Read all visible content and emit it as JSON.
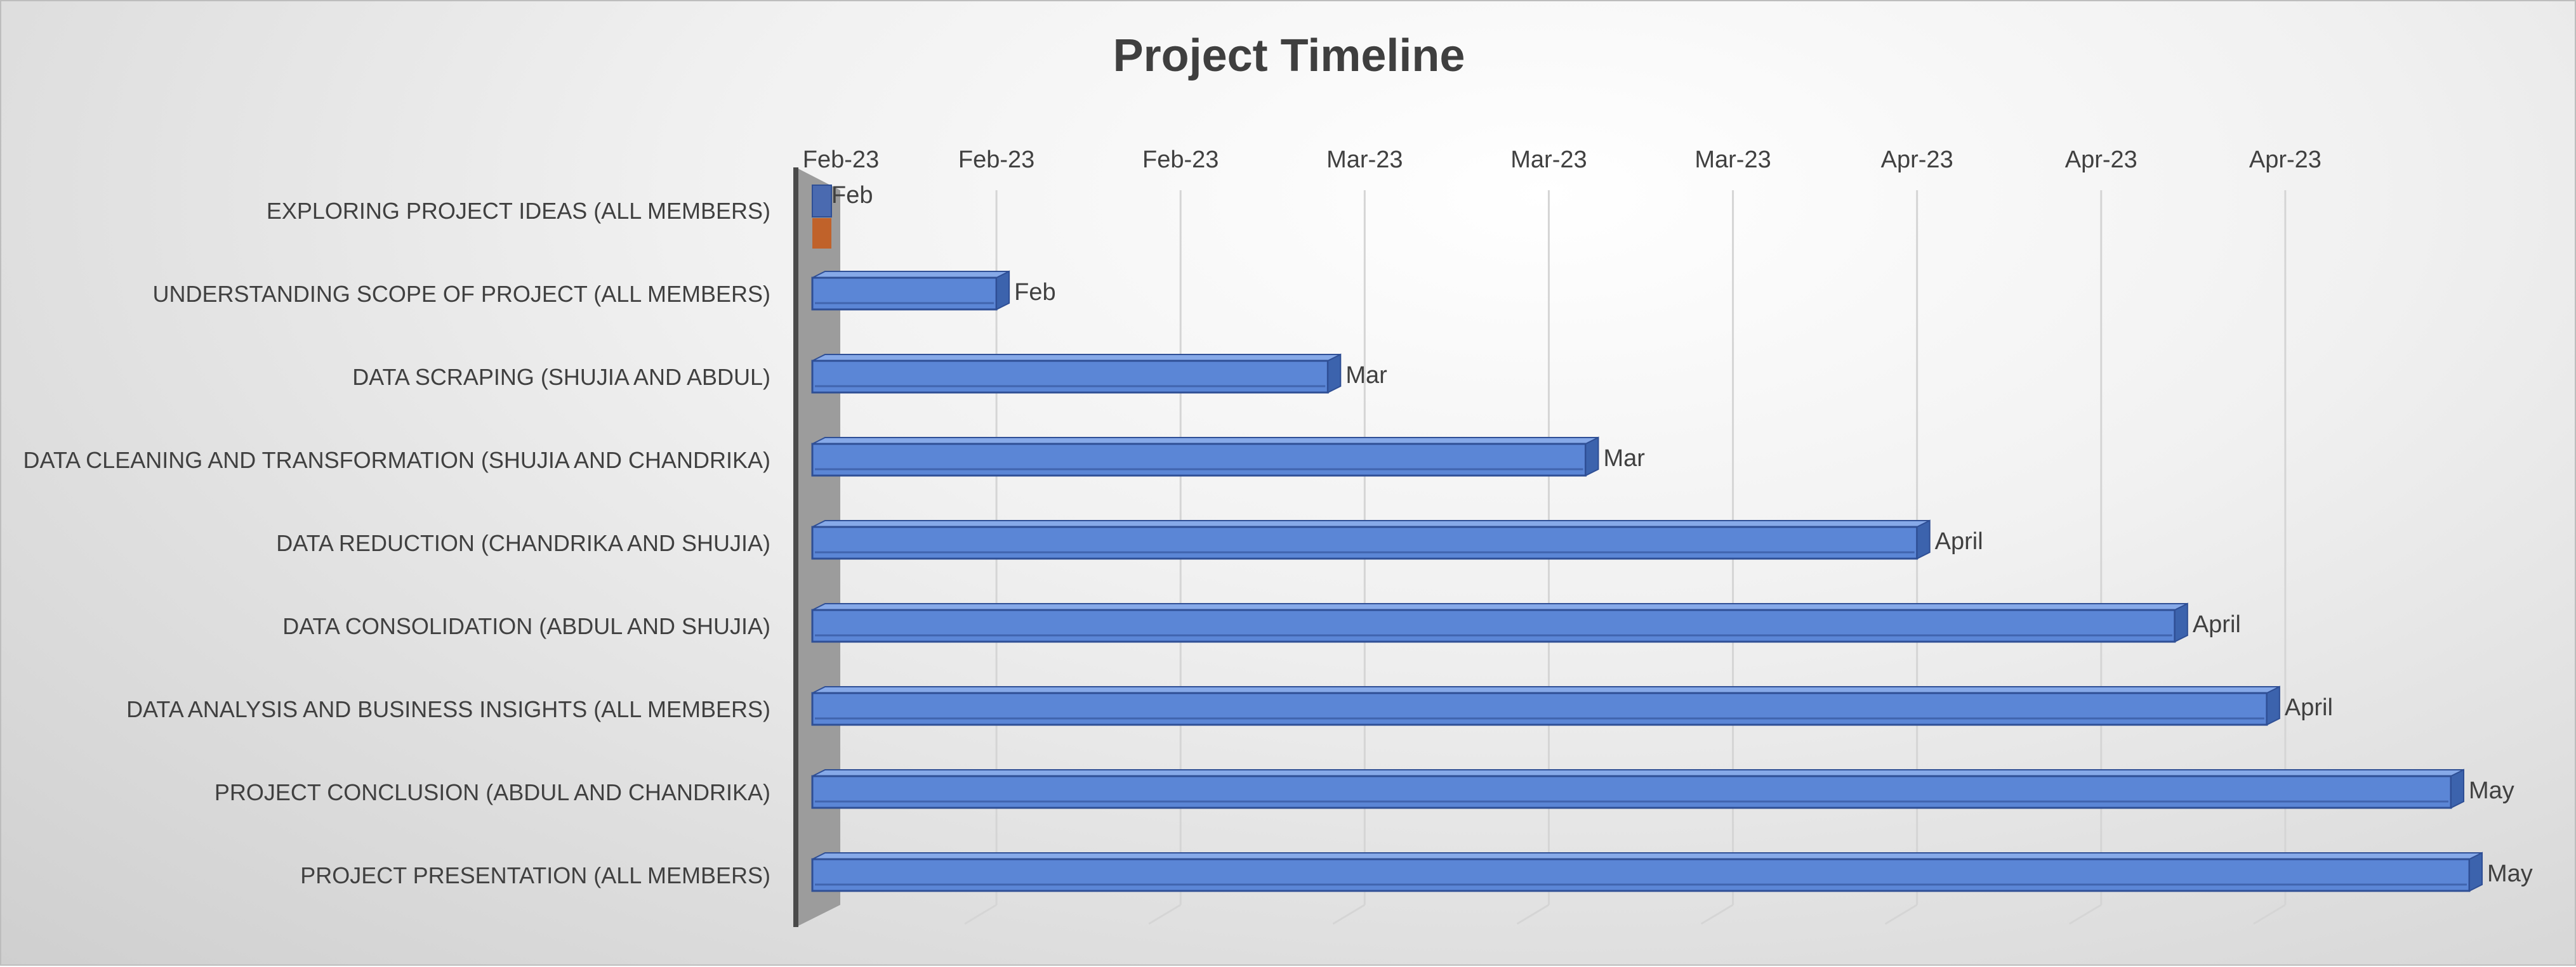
{
  "chart_data": {
    "type": "bar",
    "orientation": "horizontal",
    "title": "Project Timeline",
    "start_date": "2023-02-01",
    "categories": [
      "EXPLORING PROJECT IDEAS (ALL MEMBERS)",
      "UNDERSTANDING SCOPE OF PROJECT (ALL MEMBERS)",
      "DATA SCRAPING (SHUJIA AND ABDUL)",
      "DATA CLEANING AND TRANSFORMATION (SHUJIA AND CHANDRIKA)",
      "DATA REDUCTION (CHANDRIKA AND SHUJIA)",
      "DATA CONSOLIDATION (ABDUL AND SHUJIA)",
      "DATA ANALYSIS AND BUSINESS INSIGHTS (ALL MEMBERS)",
      "PROJECT CONCLUSION (ABDUL AND CHANDRIKA)",
      "PROJECT PRESENTATION (ALL MEMBERS)"
    ],
    "end_dates": [
      "2023-02-01",
      "2023-02-11",
      "2023-03-01",
      "2023-03-15",
      "2023-04-02",
      "2023-04-16",
      "2023-04-21",
      "2023-05-01",
      "2023-05-02"
    ],
    "data_labels": [
      "Feb",
      "Feb",
      "Mar",
      "Mar",
      "April",
      "April",
      "April",
      "May",
      "May"
    ],
    "x_tick_labels": [
      "Feb-23",
      "Feb-23",
      "Feb-23",
      "Mar-23",
      "Mar-23",
      "Mar-23",
      "Apr-23",
      "Apr-23",
      "Apr-23"
    ],
    "x_tick_dates": [
      "2023-02-01",
      "2023-02-11",
      "2023-02-21",
      "2023-03-03",
      "2023-03-13",
      "2023-03-23",
      "2023-04-02",
      "2023-04-12",
      "2023-04-22"
    ],
    "xlim": [
      "2023-02-01",
      "2023-05-01"
    ],
    "xlabel": "",
    "ylabel": "",
    "grid": true,
    "legend": "none",
    "colors": {
      "bar_front": "#5b86d6",
      "bar_top": "#86a9e8",
      "bar_side": "#3c63ad",
      "bar_edge": "#2f4f95",
      "first_marker": "#4a6ab0",
      "first_marker_base": "#c0622a",
      "axis_wall": "#9c9c9c",
      "axis_line": "#4a4a4a",
      "grid": "#d5d5d5"
    }
  }
}
